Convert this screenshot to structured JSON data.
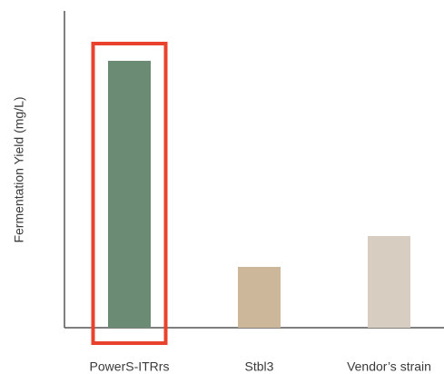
{
  "chart_data": {
    "type": "bar",
    "y_label": "Fermentation Yield (mg/L)",
    "categories": [
      "PowerS-ITRrs",
      "Stbl3",
      "Vendor’s strain"
    ],
    "values": [
      294,
      67,
      101
    ],
    "colors": [
      "#6b8b74",
      "#cdb79b",
      "#d7cdc0"
    ],
    "ylim": [
      0,
      349
    ],
    "highlight": 0,
    "highlight_color": "#e8412c"
  }
}
